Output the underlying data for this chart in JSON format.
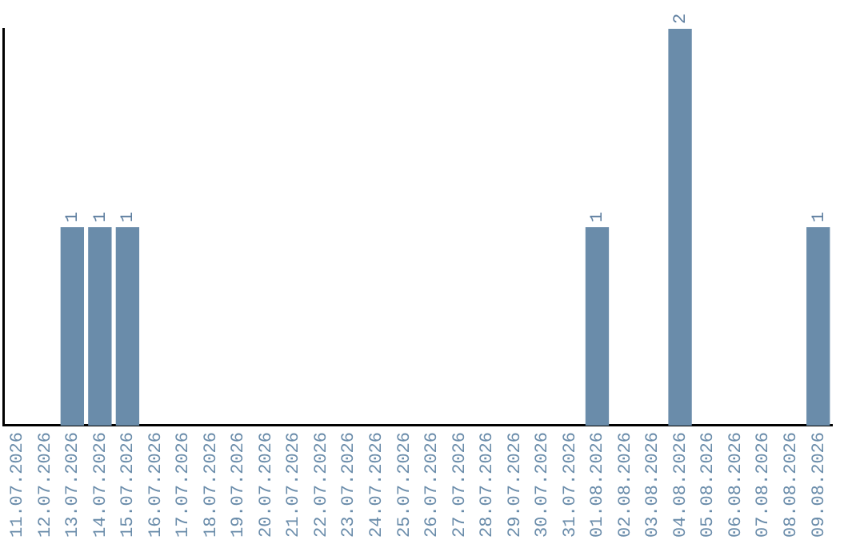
{
  "chart_data": {
    "type": "bar",
    "categories": [
      "11.07.2026",
      "12.07.2026",
      "13.07.2026",
      "14.07.2026",
      "15.07.2026",
      "16.07.2026",
      "17.07.2026",
      "18.07.2026",
      "19.07.2026",
      "20.07.2026",
      "21.07.2026",
      "22.07.2026",
      "23.07.2026",
      "24.07.2026",
      "25.07.2026",
      "26.07.2026",
      "27.07.2026",
      "28.07.2026",
      "29.07.2026",
      "30.07.2026",
      "31.07.2026",
      "01.08.2026",
      "02.08.2026",
      "03.08.2026",
      "04.08.2026",
      "05.08.2026",
      "06.08.2026",
      "07.08.2026",
      "08.08.2026",
      "09.08.2026"
    ],
    "values": [
      0,
      0,
      1,
      1,
      1,
      0,
      0,
      0,
      0,
      0,
      0,
      0,
      0,
      0,
      0,
      0,
      0,
      0,
      0,
      0,
      0,
      1,
      0,
      0,
      2,
      0,
      0,
      0,
      0,
      1
    ],
    "value_labels": [
      null,
      null,
      "1",
      "1",
      "1",
      null,
      null,
      null,
      null,
      null,
      null,
      null,
      null,
      null,
      null,
      null,
      null,
      null,
      null,
      null,
      null,
      "1",
      null,
      null,
      "2",
      null,
      null,
      null,
      null,
      "1"
    ],
    "color": "#6a8caa",
    "grid": false,
    "legend": false,
    "tick_labels": "x"
  }
}
